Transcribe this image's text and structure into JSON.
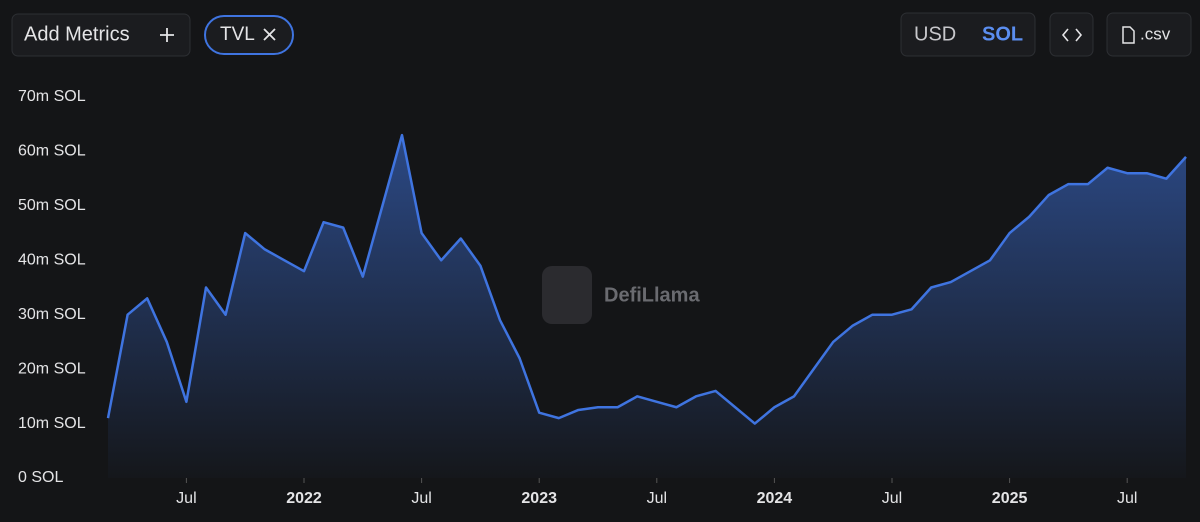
{
  "toolbar": {
    "add_metrics": "Add Metrics",
    "metric": "TVL",
    "currencies": [
      "USD",
      "SOL"
    ],
    "export": ".csv"
  },
  "watermark": "DefiLlama",
  "chart_data": {
    "type": "area",
    "color": "#3f74e0",
    "x": [
      "2021-03",
      "2021-04",
      "2021-05",
      "2021-06",
      "2021-07",
      "2021-08",
      "2021-09",
      "2021-10",
      "2021-11",
      "2021-12",
      "2022-01",
      "2022-02",
      "2022-03",
      "2022-04",
      "2022-05",
      "2022-06",
      "2022-07",
      "2022-08",
      "2022-09",
      "2022-10",
      "2022-11",
      "2022-12",
      "2023-01",
      "2023-02",
      "2023-03",
      "2023-04",
      "2023-05",
      "2023-06",
      "2023-07",
      "2023-08",
      "2023-09",
      "2023-10",
      "2023-11",
      "2023-12",
      "2024-01",
      "2024-02",
      "2024-03",
      "2024-04",
      "2024-05",
      "2024-06",
      "2024-07",
      "2024-08",
      "2024-09",
      "2024-10",
      "2024-11",
      "2024-12",
      "2025-01",
      "2025-02",
      "2025-03",
      "2025-04",
      "2025-05",
      "2025-06",
      "2025-07",
      "2025-08",
      "2025-09",
      "2025-10"
    ],
    "series": [
      {
        "name": "TVL",
        "color": "#3f74e0",
        "values": [
          11000000,
          30000000,
          33000000,
          25000000,
          14000000,
          35000000,
          30000000,
          45000000,
          42000000,
          40000000,
          38000000,
          47000000,
          46000000,
          37000000,
          50000000,
          63000000,
          45000000,
          40000000,
          44000000,
          39000000,
          29000000,
          22000000,
          12000000,
          11000000,
          12500000,
          13000000,
          13000000,
          15000000,
          14000000,
          13000000,
          15000000,
          16000000,
          13000000,
          10000000,
          13000000,
          15000000,
          20000000,
          25000000,
          28000000,
          30000000,
          30000000,
          31000000,
          35000000,
          36000000,
          38000000,
          40000000,
          45000000,
          48000000,
          52000000,
          54000000,
          54000000,
          57000000,
          56000000,
          56000000,
          55000000,
          59000000
        ]
      }
    ],
    "xlim": [
      "2021-03",
      "2025-10"
    ],
    "xticks": [
      {
        "value": "2021-07",
        "label": "Jul"
      },
      {
        "value": "2022-01",
        "label": "2022"
      },
      {
        "value": "2022-07",
        "label": "Jul"
      },
      {
        "value": "2023-01",
        "label": "2023"
      },
      {
        "value": "2023-07",
        "label": "Jul"
      },
      {
        "value": "2024-01",
        "label": "2024"
      },
      {
        "value": "2024-07",
        "label": "Jul"
      },
      {
        "value": "2025-01",
        "label": "2025"
      },
      {
        "value": "2025-07",
        "label": "Jul"
      }
    ],
    "ylim": [
      0,
      70000000
    ],
    "yticks": [
      {
        "value": 0,
        "label": "0 SOL"
      },
      {
        "value": 10000000,
        "label": "10m SOL"
      },
      {
        "value": 20000000,
        "label": "20m SOL"
      },
      {
        "value": 30000000,
        "label": "30m SOL"
      },
      {
        "value": 40000000,
        "label": "40m SOL"
      },
      {
        "value": 50000000,
        "label": "50m SOL"
      },
      {
        "value": 60000000,
        "label": "60m SOL"
      },
      {
        "value": 70000000,
        "label": "70m SOL"
      }
    ]
  }
}
